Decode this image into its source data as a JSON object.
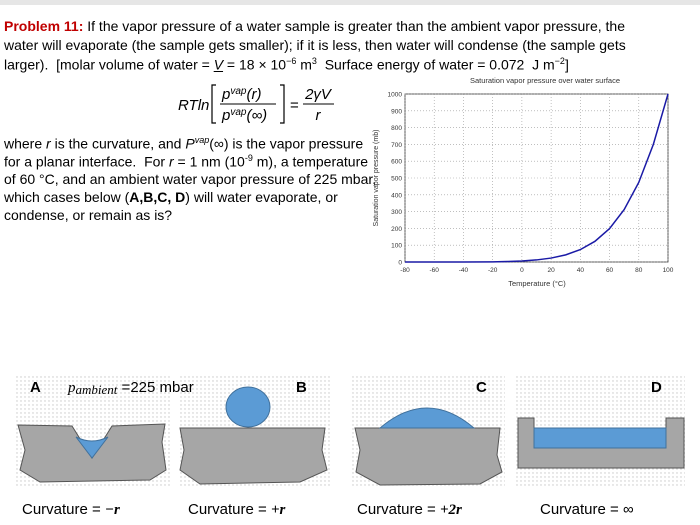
{
  "text": {
    "lines": [
      [
        "Problem 11:",
        " If the vapor pressure of a water sample is greater than the ambient vapor pressure, the"
      ],
      [
        "water will evaporate (the sample gets smaller); if it is less, then water will condense (the sample gets"
      ],
      [
        "larger).  [molar volume of water = ",
        "V",
        " = 18 × 10",
        "−6",
        " m",
        "3",
        "  Surface energy of water = 0.072  J m",
        "−2",
        "]"
      ],
      [
        "where ",
        "r",
        " is the curvature, and ",
        "P",
        "vap",
        "(∞) is the vapor pressure"
      ],
      [
        "for a planar interface.  For ",
        "r",
        " = 1 nm (10",
        "-9",
        " m), a temperature"
      ],
      [
        "of 60 °C, and an ambient water vapor pressure of 225 mbar,"
      ],
      [
        "which cases below (",
        "A,B,C, D",
        ") will water evaporate, or"
      ],
      [
        "condense, or remain as is?"
      ]
    ]
  },
  "equation": {
    "lhs": "RTln",
    "num_base": "p",
    "num_sup": "vap",
    "num_arg": "(r)",
    "den_base": "p",
    "den_sup": "vap",
    "den_arg": "(∞)",
    "equals": "=",
    "rhs_num": "2γV",
    "rhs_den": "r"
  },
  "chart_data": {
    "type": "line",
    "title": "Saturation vapor pressure over water surface",
    "xlabel": "Temperature (°C)",
    "ylabel": "Saturation vapor pressure (mb)",
    "x": [
      -80,
      -60,
      -40,
      -20,
      -10,
      0,
      10,
      20,
      30,
      40,
      50,
      60,
      70,
      80,
      90,
      100
    ],
    "series": [
      {
        "name": "Saturation vapor pressure",
        "color": "#1a1aa6",
        "values": [
          0,
          0,
          0.2,
          1,
          2.9,
          6.1,
          12.3,
          23.4,
          42.4,
          73.8,
          123,
          199,
          312,
          474,
          701,
          1000
        ]
      }
    ],
    "xlim": [
      -80,
      100
    ],
    "xticks": [
      -80,
      -60,
      -40,
      -20,
      0,
      20,
      40,
      60,
      80,
      100
    ],
    "ylim": [
      0,
      1000
    ],
    "yticks": [
      0,
      100,
      200,
      300,
      400,
      500,
      600,
      700,
      800,
      900,
      1000
    ],
    "grid": true
  },
  "panels": {
    "labels": [
      "A",
      "B",
      "C",
      "D"
    ],
    "ambient_p": "p",
    "ambient_sub": "ambient",
    "ambient_value": " =225 mbar",
    "curvature_prefix": [
      "Curvature = ",
      "Curvature = ",
      "Curvature = ",
      "Curvature = "
    ],
    "curvature_value": [
      "−r",
      "+r",
      "+2r",
      "∞"
    ]
  }
}
